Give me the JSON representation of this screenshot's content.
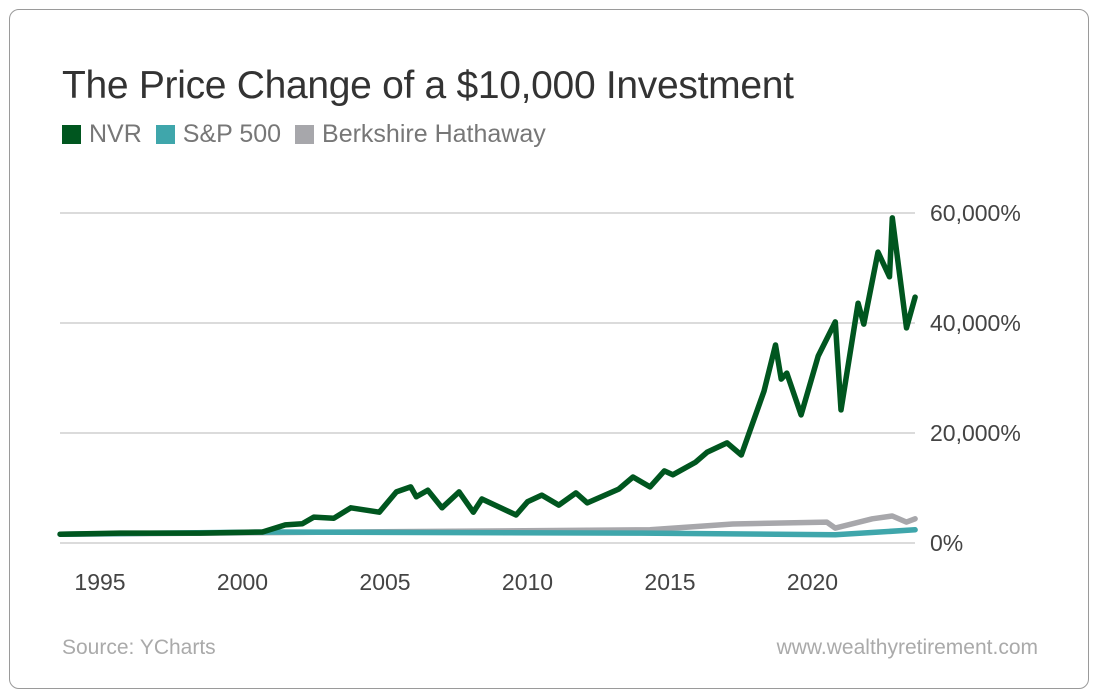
{
  "chart_data": {
    "type": "line",
    "title": "The Price Change of a $10,000 Investment",
    "xlabel": "",
    "ylabel": "",
    "xlim": [
      1993.6,
      2023.6
    ],
    "ylim": [
      0,
      60000
    ],
    "x_ticks": [
      "1995",
      "2000",
      "2005",
      "2010",
      "2015",
      "2020"
    ],
    "y_ticks": [
      {
        "value": 0,
        "label": "0%"
      },
      {
        "value": 20000,
        "label": "20,000%"
      },
      {
        "value": 40000,
        "label": "40,000%"
      },
      {
        "value": 60000,
        "label": "60,000%"
      }
    ],
    "grid": "horizontal",
    "legend_placement": "top-left",
    "series": [
      {
        "name": "Berkshire Hathaway",
        "color": "#a7a7ab",
        "points": [
          [
            1993.6,
            1600
          ],
          [
            2001.5,
            1900
          ],
          [
            2014.3,
            2400
          ],
          [
            2017.2,
            3450
          ],
          [
            2020.5,
            3800
          ],
          [
            2020.8,
            2700
          ],
          [
            2022.1,
            4400
          ],
          [
            2022.8,
            4900
          ],
          [
            2023.3,
            3800
          ],
          [
            2023.6,
            4400
          ]
        ]
      },
      {
        "name": "S&P 500",
        "color": "#3fa6ab",
        "points": [
          [
            1993.6,
            1600
          ],
          [
            2001.0,
            2000
          ],
          [
            2014.0,
            1800
          ],
          [
            2020.8,
            1500
          ],
          [
            2023.6,
            2400
          ]
        ]
      },
      {
        "name": "NVR",
        "color": "#00561f",
        "points": [
          [
            1993.6,
            1600
          ],
          [
            1995.7,
            1800
          ],
          [
            1998.5,
            1800
          ],
          [
            2000.7,
            2000
          ],
          [
            2001.5,
            3300
          ],
          [
            2002.1,
            3500
          ],
          [
            2002.5,
            4700
          ],
          [
            2003.2,
            4500
          ],
          [
            2003.8,
            6400
          ],
          [
            2004.8,
            5600
          ],
          [
            2005.4,
            9300
          ],
          [
            2005.9,
            10200
          ],
          [
            2006.1,
            8400
          ],
          [
            2006.5,
            9600
          ],
          [
            2007.0,
            6400
          ],
          [
            2007.6,
            9300
          ],
          [
            2008.1,
            5600
          ],
          [
            2008.4,
            8000
          ],
          [
            2009.6,
            5100
          ],
          [
            2010.0,
            7500
          ],
          [
            2010.5,
            8700
          ],
          [
            2011.1,
            6900
          ],
          [
            2011.7,
            9100
          ],
          [
            2012.1,
            7300
          ],
          [
            2013.2,
            9800
          ],
          [
            2013.7,
            12000
          ],
          [
            2014.3,
            10200
          ],
          [
            2014.8,
            13100
          ],
          [
            2015.1,
            12400
          ],
          [
            2015.9,
            14700
          ],
          [
            2016.3,
            16500
          ],
          [
            2017.0,
            18200
          ],
          [
            2017.5,
            16000
          ],
          [
            2018.3,
            27600
          ],
          [
            2018.7,
            36000
          ],
          [
            2018.9,
            29800
          ],
          [
            2019.1,
            30900
          ],
          [
            2019.6,
            23300
          ],
          [
            2020.2,
            34000
          ],
          [
            2020.8,
            40200
          ],
          [
            2021.0,
            24200
          ],
          [
            2021.6,
            43600
          ],
          [
            2021.8,
            39800
          ],
          [
            2022.3,
            52900
          ],
          [
            2022.7,
            48400
          ],
          [
            2022.8,
            59100
          ],
          [
            2023.3,
            39100
          ],
          [
            2023.6,
            44700
          ]
        ]
      }
    ]
  },
  "legend": [
    "NVR",
    "S&P 500",
    "Berkshire Hathaway"
  ],
  "legend_colors": [
    "#00561f",
    "#3fa6ab",
    "#a7a7ab"
  ],
  "footer": {
    "source": "Source: YCharts",
    "site": "www.wealthyretirement.com"
  }
}
